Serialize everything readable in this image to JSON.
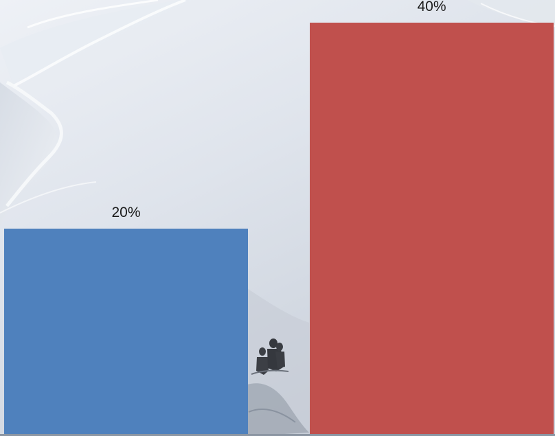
{
  "chart_data": {
    "type": "bar",
    "categories": [
      "",
      ""
    ],
    "series": [
      {
        "values": [
          20,
          40
        ],
        "colors": [
          "#4f81bd",
          "#c0504d"
        ]
      }
    ],
    "data_labels": [
      "20%",
      "40%"
    ],
    "ylim": [
      0,
      42.2
    ],
    "grid": false,
    "legend": "none",
    "background": "snowy-mountain-photo"
  }
}
